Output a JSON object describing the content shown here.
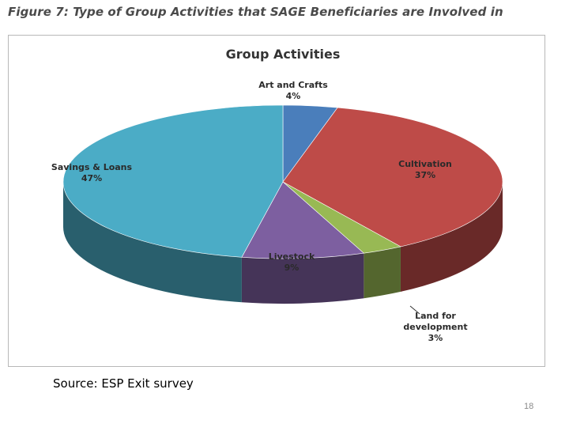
{
  "figure_caption": "Figure 7: Type of Group Activities that SAGE Beneficiaries are Involved in",
  "source_text": "Source: ESP Exit survey",
  "page_number": "18",
  "chart_data": {
    "type": "pie",
    "title": "Group Activities",
    "three_d": true,
    "slices": [
      {
        "name": "Art and Crafts",
        "percent_label": "4%",
        "value": 4,
        "color": "#4a7ebb"
      },
      {
        "name": "Cultivation",
        "percent_label": "37%",
        "value": 37,
        "color": "#be4b48"
      },
      {
        "name": "Land for development",
        "name_lines": [
          "Land for",
          "development"
        ],
        "percent_label": "3%",
        "value": 3,
        "color": "#98b954"
      },
      {
        "name": "Livestock",
        "percent_label": "9%",
        "value": 9,
        "color": "#7d5fa0"
      },
      {
        "name": "Savings & Loans",
        "percent_label": "47%",
        "value": 47,
        "color": "#4bacc6"
      }
    ]
  }
}
